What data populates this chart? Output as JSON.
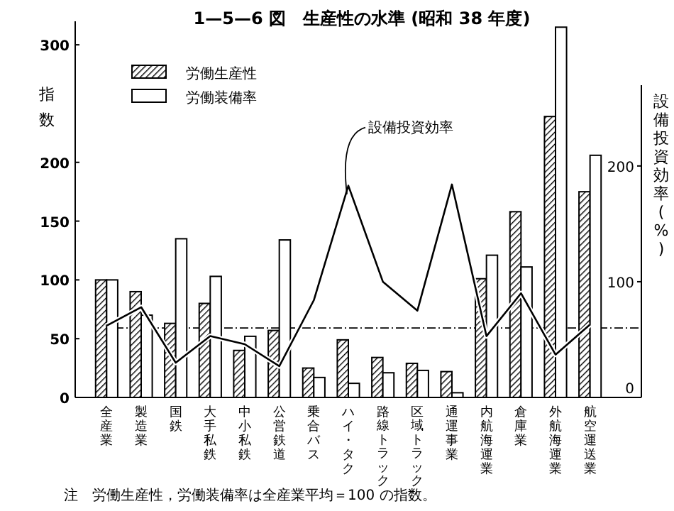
{
  "chart_data": {
    "type": "bar",
    "title": "1—5—6 図　生産性の水準 (昭和 38 年度)",
    "ylabel": "指数",
    "y2label": "設備投資効率(%)",
    "categories": [
      "全産業",
      "製造業",
      "国鉄",
      "大手私鉄",
      "中小私鉄",
      "公営鉄道",
      "乗合バス",
      "ハイ・タク",
      "路線トラック",
      "区域トラック",
      "通運事業",
      "内航海運業",
      "倉庫業",
      "外航海運業",
      "航空運送業"
    ],
    "series": [
      {
        "name": "労働生産性",
        "color": "#000000",
        "values": [
          100,
          90,
          63,
          80,
          40,
          57,
          25,
          49,
          34,
          29,
          22,
          101,
          158,
          239,
          175
        ]
      },
      {
        "name": "労働装備率",
        "color": "#ffffff",
        "values": [
          100,
          70,
          135,
          103,
          52,
          134,
          17,
          12,
          21,
          23,
          4,
          121,
          111,
          315,
          206
        ]
      },
      {
        "name": "設備投資効率",
        "type": "line",
        "axis": "y2",
        "color": "#000000",
        "values": [
          62,
          78,
          30,
          53,
          46,
          27,
          84,
          183,
          100,
          75,
          184,
          53,
          90,
          37,
          63
        ]
      }
    ],
    "ylim": [
      0,
      320
    ],
    "yticks": [
      0,
      50,
      100,
      150,
      200,
      300
    ],
    "y2lim": [
      0,
      325
    ],
    "y2ticks": [
      0,
      100,
      200
    ],
    "ref_lines": [
      {
        "axis": "y2",
        "value": 60,
        "line_style": "dashed"
      }
    ],
    "legend": "top left",
    "grid": false,
    "annotations": [
      "注　労働生産性，労働装備率は全産業平均＝100 の指数。"
    ]
  }
}
